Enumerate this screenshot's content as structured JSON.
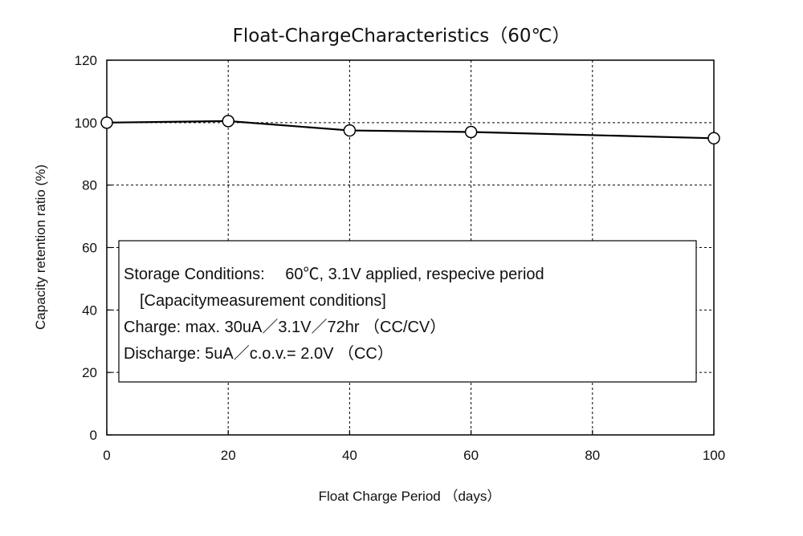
{
  "chart_data": {
    "type": "line",
    "title": "Float-ChargeCharacteristics（60℃）",
    "xlabel": "Float Charge Period （days）",
    "ylabel": "Capacity retention ratio (%)",
    "xlim": [
      0,
      100
    ],
    "ylim": [
      0,
      120
    ],
    "xticks": [
      "0",
      "20",
      "40",
      "60",
      "80",
      "100"
    ],
    "yticks": [
      "0",
      "20",
      "40",
      "60",
      "80",
      "100",
      "120"
    ],
    "grid": true,
    "series": [
      {
        "x": [
          0,
          20,
          40,
          60,
          100
        ],
        "y": [
          100,
          100.5,
          97.5,
          97,
          95
        ]
      }
    ],
    "annotation": [
      "Storage Conditions:　 60℃, 3.1V applied, respecive period",
      "　[Capacitymeasurement conditions]",
      "Charge: max. 30uA／3.1V／72hr （CC/CV）",
      "Discharge: 5uA／c.o.v.= 2.0V （CC）"
    ]
  }
}
